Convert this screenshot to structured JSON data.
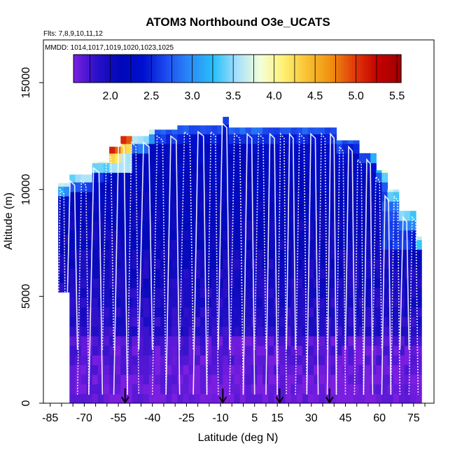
{
  "chart_data": {
    "type": "heatmap",
    "title": "ATOM3 Northbound O3e_UCATS",
    "subtitle_flights": "Flts: 7,8,9,10,11,12",
    "subtitle_dates": "MMDD: 1014,1017,1019,1020,1023,1025",
    "xlabel": "Latitude (deg N)",
    "ylabel": "Altitude (m)",
    "xlim": [
      -88,
      84
    ],
    "ylim": [
      0,
      17000
    ],
    "x_ticks": [
      -85,
      -70,
      -55,
      -40,
      -25,
      -10,
      5,
      15,
      30,
      45,
      60,
      75
    ],
    "y_ticks": [
      0,
      5000,
      10000,
      15000
    ],
    "colorbar": {
      "range": [
        1.55,
        5.55
      ],
      "ticks": [
        2.0,
        2.5,
        3.0,
        3.5,
        4.0,
        4.5,
        5.0,
        5.5
      ],
      "tick_labels": [
        "2.0",
        "2.5",
        "3.0",
        "3.5",
        "4.0",
        "4.5",
        "5.0",
        "5.5"
      ],
      "colors": [
        "#7a1ee0",
        "#2a10c8",
        "#0008b8",
        "#0010d0",
        "#1e4ef0",
        "#2a8cf8",
        "#28c0fa",
        "#a8e0fc",
        "#f4ffd8",
        "#fff070",
        "#f8c030",
        "#f09010",
        "#e03a0a",
        "#c40000",
        "#a00000"
      ]
    },
    "arrow_latitudes": [
      -52,
      -9,
      16,
      38
    ],
    "grid": false,
    "legend": "colorbar-top-inside"
  }
}
